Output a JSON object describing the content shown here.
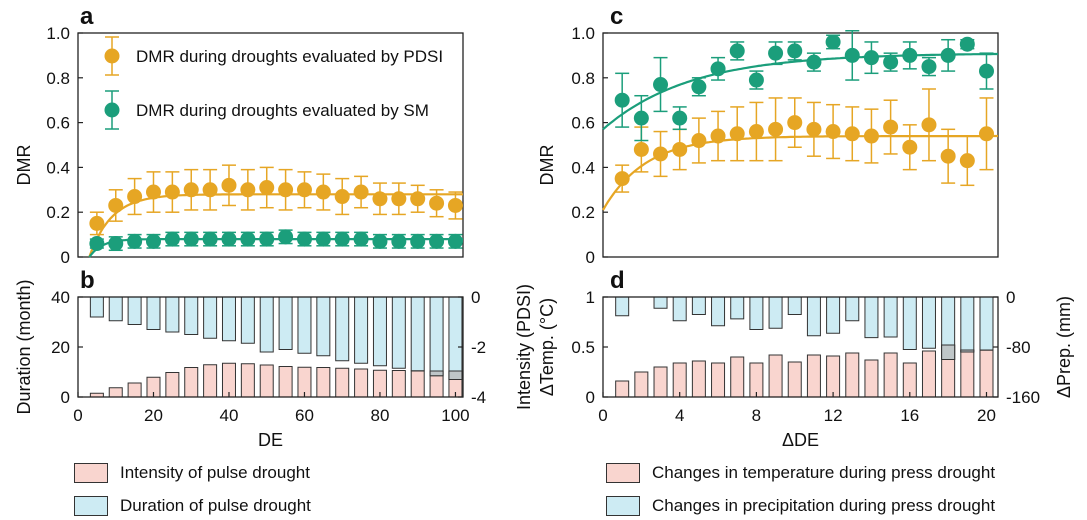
{
  "colors": {
    "pdsi": "#E6A624",
    "sm": "#1B9E7B",
    "pink": "#F9D5CF",
    "blue": "#CDEBF3",
    "overlap": "#BFC6C8"
  },
  "panels": {
    "a": "a",
    "b": "b",
    "c": "c",
    "d": "d"
  },
  "legend_bottom": {
    "left": [
      {
        "label": "Intensity of pulse drought",
        "color": "#F9D5CF"
      },
      {
        "label": "Duration of pulse drought",
        "color": "#CDEBF3"
      }
    ],
    "right": [
      {
        "label": "Changes in temperature during press drought",
        "color": "#F9D5CF"
      },
      {
        "label": "Changes in precipitation during press drought",
        "color": "#CDEBF3"
      }
    ]
  },
  "chart_data": [
    {
      "id": "a",
      "type": "scatter",
      "ylabel": "DMR",
      "ylim": [
        0,
        1
      ],
      "xlim": [
        0,
        102
      ],
      "yticks": [
        "0",
        "0.2",
        "0.4",
        "0.6",
        "0.8",
        "1.0"
      ],
      "legend": [
        {
          "name": "DMR during droughts evaluated by PDSI",
          "color": "#E6A624"
        },
        {
          "name": "DMR during droughts evaluated by SM",
          "color": "#1B9E7B"
        }
      ],
      "series": [
        {
          "name": "DMR during droughts evaluated by PDSI",
          "color": "#E6A624",
          "x": [
            5,
            10,
            15,
            20,
            25,
            30,
            35,
            40,
            45,
            50,
            55,
            60,
            65,
            70,
            75,
            80,
            85,
            90,
            95,
            100
          ],
          "y": [
            0.15,
            0.23,
            0.27,
            0.29,
            0.29,
            0.3,
            0.3,
            0.32,
            0.3,
            0.31,
            0.3,
            0.3,
            0.29,
            0.27,
            0.29,
            0.26,
            0.26,
            0.26,
            0.24,
            0.23
          ],
          "err": [
            0.05,
            0.07,
            0.08,
            0.09,
            0.09,
            0.09,
            0.09,
            0.09,
            0.09,
            0.09,
            0.09,
            0.08,
            0.08,
            0.08,
            0.07,
            0.07,
            0.07,
            0.06,
            0.06,
            0.06
          ],
          "fit": {
            "a": 0.28,
            "k": 0.17,
            "x0": 3
          }
        },
        {
          "name": "DMR during droughts evaluated by SM",
          "color": "#1B9E7B",
          "x": [
            5,
            10,
            15,
            20,
            25,
            30,
            35,
            40,
            45,
            50,
            55,
            60,
            65,
            70,
            75,
            80,
            85,
            90,
            95,
            100
          ],
          "y": [
            0.06,
            0.06,
            0.07,
            0.07,
            0.08,
            0.08,
            0.08,
            0.08,
            0.08,
            0.08,
            0.09,
            0.08,
            0.08,
            0.08,
            0.08,
            0.07,
            0.07,
            0.07,
            0.07,
            0.07
          ],
          "err": [
            0.02,
            0.03,
            0.03,
            0.03,
            0.03,
            0.03,
            0.03,
            0.03,
            0.03,
            0.03,
            0.03,
            0.03,
            0.03,
            0.03,
            0.03,
            0.03,
            0.03,
            0.03,
            0.03,
            0.03
          ],
          "fit": {
            "a": 0.08,
            "k": 0.3,
            "x0": 3
          }
        }
      ]
    },
    {
      "id": "b",
      "type": "bar",
      "xlabel": "DE",
      "ylabel": "Duration (month)",
      "ylabel_right": "Intensity (PDSI)",
      "xlim": [
        0,
        102
      ],
      "ylim": [
        0,
        40
      ],
      "ylim_right": [
        -4,
        0
      ],
      "xticks": [
        0,
        20,
        40,
        60,
        80,
        100
      ],
      "yticks": [
        0,
        20,
        40
      ],
      "yticks_right": [
        "0",
        "-2",
        "-4"
      ],
      "x": [
        5,
        10,
        15,
        20,
        25,
        30,
        35,
        40,
        45,
        50,
        55,
        60,
        65,
        70,
        75,
        80,
        85,
        90,
        95,
        100
      ],
      "duration": [
        1.5,
        3.7,
        5.6,
        7.9,
        9.8,
        11.8,
        12.9,
        13.5,
        13.3,
        12.8,
        12.2,
        11.9,
        11.8,
        11.5,
        11.2,
        10.7,
        10.6,
        10.4,
        10.4,
        10.4
      ],
      "intensity": [
        -0.8,
        -0.95,
        -1.1,
        -1.3,
        -1.4,
        -1.5,
        -1.65,
        -1.75,
        -1.85,
        -2.2,
        -2.1,
        -2.25,
        -2.35,
        -2.55,
        -2.65,
        -2.75,
        -2.85,
        -2.95,
        -3.15,
        -3.3
      ]
    },
    {
      "id": "c",
      "type": "scatter",
      "ylabel": "DMR",
      "ylim": [
        0,
        1
      ],
      "xlim": [
        0,
        20.6
      ],
      "yticks": [
        "0",
        "0.2",
        "0.4",
        "0.6",
        "0.8",
        "1.0"
      ],
      "series": [
        {
          "name": "DMR during droughts evaluated by PDSI",
          "color": "#E6A624",
          "x": [
            1,
            2,
            3,
            4,
            5,
            6,
            7,
            8,
            9,
            10,
            11,
            12,
            13,
            14,
            15,
            16,
            17,
            18,
            19,
            20
          ],
          "y": [
            0.35,
            0.48,
            0.46,
            0.48,
            0.52,
            0.54,
            0.55,
            0.56,
            0.57,
            0.6,
            0.57,
            0.56,
            0.55,
            0.54,
            0.58,
            0.49,
            0.59,
            0.45,
            0.43,
            0.55
          ],
          "err": [
            0.06,
            0.1,
            0.1,
            0.09,
            0.1,
            0.11,
            0.12,
            0.13,
            0.14,
            0.11,
            0.12,
            0.12,
            0.12,
            0.12,
            0.12,
            0.1,
            0.16,
            0.12,
            0.11,
            0.16
          ],
          "fit": {
            "a": 0.54,
            "b": 0.33,
            "k": 0.45
          }
        },
        {
          "name": "DMR during droughts evaluated by SM",
          "color": "#1B9E7B",
          "x": [
            1,
            2,
            3,
            4,
            5,
            6,
            7,
            8,
            9,
            10,
            11,
            12,
            13,
            14,
            15,
            16,
            17,
            18,
            19,
            20
          ],
          "y": [
            0.7,
            0.62,
            0.77,
            0.62,
            0.76,
            0.84,
            0.92,
            0.79,
            0.91,
            0.92,
            0.87,
            0.96,
            0.9,
            0.89,
            0.87,
            0.9,
            0.85,
            0.9,
            0.95,
            0.83
          ],
          "err": [
            0.12,
            0.1,
            0.12,
            0.05,
            0.04,
            0.05,
            0.04,
            0.04,
            0.05,
            0.04,
            0.04,
            0.03,
            0.11,
            0.07,
            0.04,
            0.06,
            0.04,
            0.07,
            0.02,
            0.08
          ],
          "fit": {
            "a": 0.91,
            "b": 0.34,
            "k": 0.22
          }
        }
      ]
    },
    {
      "id": "d",
      "type": "bar",
      "xlabel": "ΔDE",
      "ylabel": "ΔTemp. (°C)",
      "ylabel_right": "ΔPrep. (mm)",
      "xlim": [
        0,
        20.6
      ],
      "ylim": [
        0,
        1
      ],
      "ylim_right": [
        -160,
        0
      ],
      "xticks": [
        0,
        4,
        8,
        12,
        16,
        20
      ],
      "yticks": [
        "0",
        "0.5",
        "1"
      ],
      "yticks_right": [
        "0",
        "-80",
        "-160"
      ],
      "x": [
        1,
        2,
        3,
        4,
        5,
        6,
        7,
        8,
        9,
        10,
        11,
        12,
        13,
        14,
        15,
        16,
        17,
        18,
        19,
        20
      ],
      "temp": [
        0.16,
        0.25,
        0.3,
        0.34,
        0.36,
        0.34,
        0.4,
        0.34,
        0.42,
        0.35,
        0.42,
        0.41,
        0.44,
        0.37,
        0.44,
        0.34,
        0.46,
        0.52,
        0.47,
        0.47
      ],
      "prep": [
        -30,
        0,
        -18,
        -38,
        -28,
        -46,
        -35,
        -52,
        -50,
        -28,
        -62,
        -58,
        -38,
        -65,
        -64,
        -84,
        -82,
        -100,
        -88,
        -85
      ]
    }
  ]
}
